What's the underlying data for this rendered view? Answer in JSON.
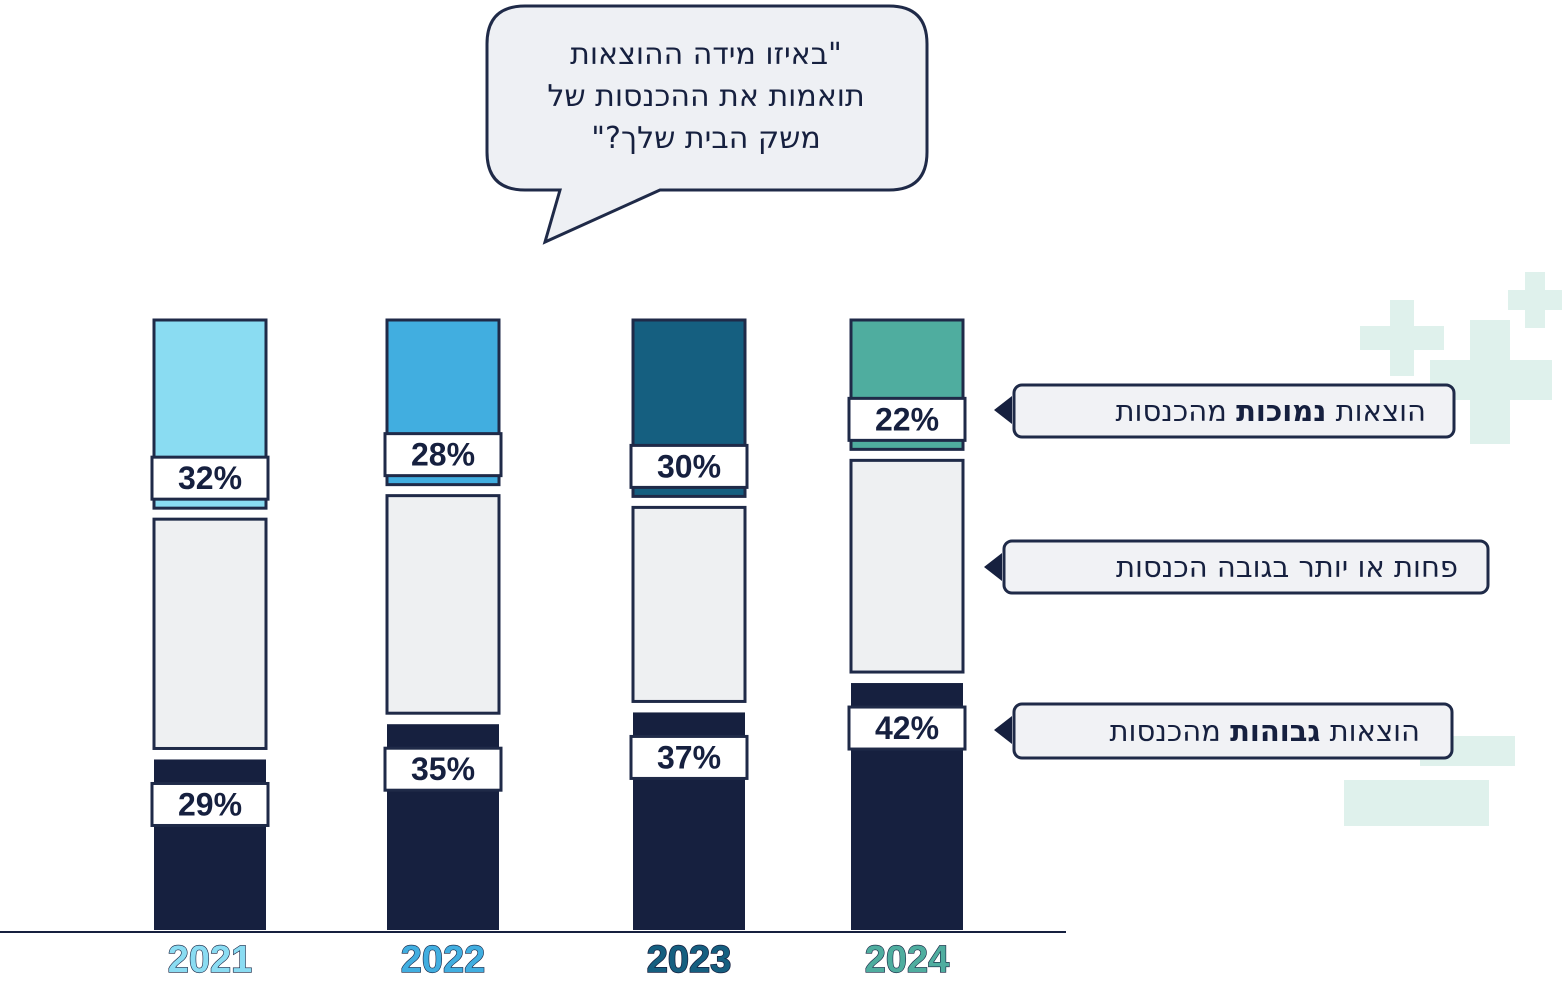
{
  "question": {
    "lines": [
      "\"באיזו מידה ההוצאות",
      "תואמות את ההכנסות של",
      "משק הבית שלך?\""
    ]
  },
  "chart_data": {
    "type": "bar",
    "stacked": true,
    "categories": [
      "2021",
      "2022",
      "2023",
      "2024"
    ],
    "category_colors": [
      "#8adcf2",
      "#41aee0",
      "#155f80",
      "#4fad9f"
    ],
    "series": [
      {
        "name": "הוצאות גבוהות מהכנסות",
        "values": [
          29,
          35,
          37,
          42
        ],
        "color": "#16203f"
      },
      {
        "name": "פחות או יותר בגובה הכנסות",
        "values": [
          39,
          37,
          33,
          36
        ],
        "color": "#eef0f2"
      },
      {
        "name": "הוצאות נמוכות מהכנסות",
        "values": [
          32,
          28,
          30,
          22
        ],
        "color": "category"
      }
    ],
    "labels": {
      "2021": {
        "high": "29%",
        "low": "32%"
      },
      "2022": {
        "high": "35%",
        "low": "28%"
      },
      "2023": {
        "high": "37%",
        "low": "30%"
      },
      "2024": {
        "high": "42%",
        "low": "22%"
      }
    },
    "ylim": [
      0,
      100
    ]
  },
  "legend": {
    "low": {
      "before": "הוצאות ",
      "bold": "נמוכות",
      "after": " מהכנסות"
    },
    "mid": {
      "text": "פחות או יותר בגובה הכנסות"
    },
    "high": {
      "before": "הוצאות ",
      "bold": "גבוהות",
      "after": " מהכנסות"
    }
  },
  "colors": {
    "navy": "#16203f",
    "outline": "#1f2a48",
    "label_bg": "#ffffff",
    "legend_bg": "#f1f2f5",
    "deco_mint": "#dff1ec"
  }
}
